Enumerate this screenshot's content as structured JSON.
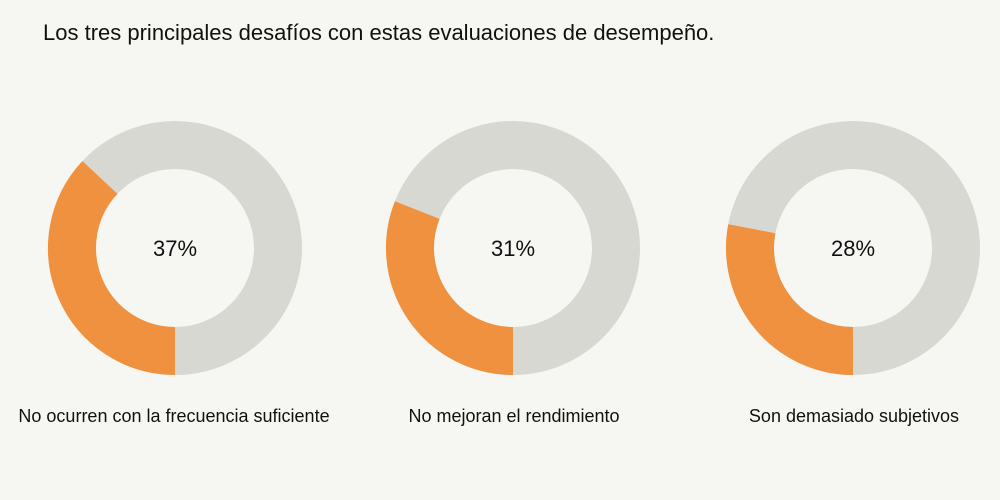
{
  "page": {
    "title": "Los tres principales desafíos con estas evaluaciones de desempeño."
  },
  "colors": {
    "accent": "#f0913f",
    "remainder": "#d7d8d2",
    "background": "#f6f6f2",
    "text": "#111111"
  },
  "chart_data": {
    "type": "pie",
    "variant": "donut",
    "title": "Los tres principales desafíos con estas evaluaciones de desempeño.",
    "unit": "%",
    "items": [
      {
        "label": "No ocurren con la frecuencia suficiente",
        "value": 37,
        "display": "37%"
      },
      {
        "label": "No mejoran el rendimiento",
        "value": 31,
        "display": "31%"
      },
      {
        "label": "Son demasiado subjetivos",
        "value": 28,
        "display": "28%"
      }
    ]
  }
}
